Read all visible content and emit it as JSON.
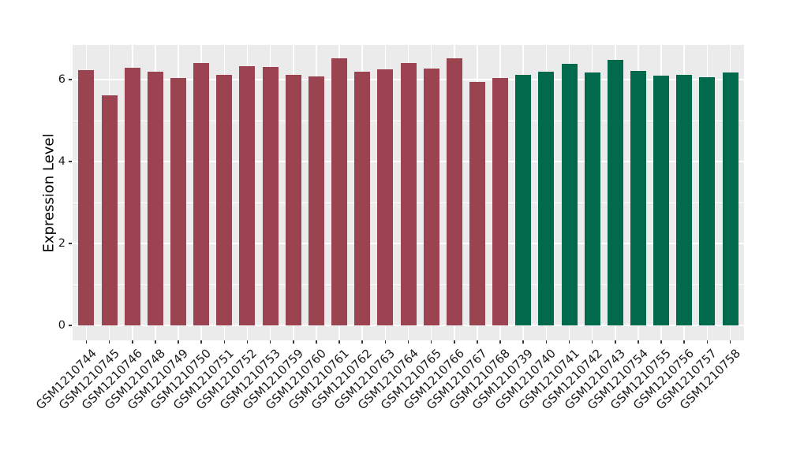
{
  "chart_data": {
    "type": "bar",
    "title": "",
    "xlabel": "",
    "ylabel": "Expression Level",
    "yticks": [
      0,
      2,
      4,
      6
    ],
    "ytick_labels": [
      "0",
      "2",
      "4",
      "6"
    ],
    "minor_yticks": [
      1,
      3,
      5
    ],
    "ylim": [
      -0.37,
      6.85
    ],
    "legend": "none",
    "grid": "white major+minor horizontal lines and vertical lines at category centers on gray panel",
    "categories": [
      "GSM1210744",
      "GSM1210745",
      "GSM1210746",
      "GSM1210748",
      "GSM1210749",
      "GSM1210750",
      "GSM1210751",
      "GSM1210752",
      "GSM1210753",
      "GSM1210759",
      "GSM1210760",
      "GSM1210761",
      "GSM1210762",
      "GSM1210763",
      "GSM1210764",
      "GSM1210765",
      "GSM1210766",
      "GSM1210767",
      "GSM1210768",
      "GSM1210739",
      "GSM1210740",
      "GSM1210741",
      "GSM1210742",
      "GSM1210743",
      "GSM1210754",
      "GSM1210755",
      "GSM1210756",
      "GSM1210757",
      "GSM1210758"
    ],
    "values": [
      6.23,
      5.62,
      6.28,
      6.2,
      6.04,
      6.41,
      6.12,
      6.33,
      6.31,
      6.11,
      6.07,
      6.52,
      6.2,
      6.25,
      6.41,
      6.27,
      6.52,
      5.95,
      6.04,
      6.11,
      6.2,
      6.38,
      6.18,
      6.48,
      6.21,
      6.09,
      6.11,
      6.06,
      6.17
    ],
    "groups": [
      "maroon",
      "maroon",
      "maroon",
      "maroon",
      "maroon",
      "maroon",
      "maroon",
      "maroon",
      "maroon",
      "maroon",
      "maroon",
      "maroon",
      "maroon",
      "maroon",
      "maroon",
      "maroon",
      "maroon",
      "maroon",
      "maroon",
      "green",
      "green",
      "green",
      "green",
      "green",
      "green",
      "green",
      "green",
      "green",
      "green"
    ],
    "group_colors": {
      "maroon": "#9C4352",
      "green": "#016A4C"
    },
    "panel_background": "#EBEBEB",
    "gridline_color": "#FFFFFF",
    "tick_color": "#333333",
    "axis_text_color": "#1A1A1A"
  }
}
